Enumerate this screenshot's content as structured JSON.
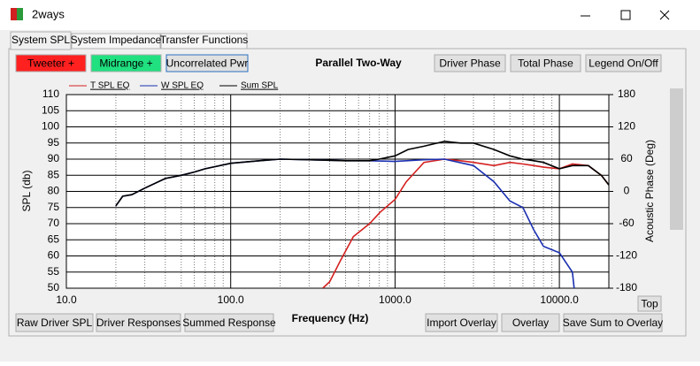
{
  "window": {
    "title": "2ways"
  },
  "tabs": [
    "System SPL",
    "System Impedance",
    "Transfer Functions"
  ],
  "top_buttons": [
    "Tweeter +",
    "Midrange +",
    "Uncorrelated Pwr",
    "Driver Phase",
    "Total Phase",
    "Legend On/Off"
  ],
  "bottom_buttons": [
    "Raw Driver SPL",
    "Driver Responses",
    "Summed Response",
    "Import Overlay",
    "Overlay",
    "Save Sum to Overlay",
    "Top"
  ],
  "chart_data": {
    "type": "line",
    "title": "Parallel Two-Way",
    "x_label": "Frequency (Hz)",
    "y_label": "SPL (db)",
    "y2_label": "Acoustic Phase (Deg)",
    "x_scale": "log",
    "grid": true,
    "xlim": [
      10,
      20000
    ],
    "xticks": [
      {
        "value": 10,
        "label": "10.0"
      },
      {
        "value": 100,
        "label": "100.0"
      },
      {
        "value": 1000,
        "label": "1000.0"
      },
      {
        "value": 10000,
        "label": "10000.0"
      }
    ],
    "ylim": [
      50,
      110
    ],
    "yticks": [
      50,
      55,
      60,
      65,
      70,
      75,
      80,
      85,
      90,
      95,
      100,
      105,
      110
    ],
    "y2lim": [
      -180,
      180
    ],
    "y2ticks": [
      -180,
      -120,
      -60,
      0,
      60,
      120,
      180
    ],
    "series": [
      {
        "name": "T SPL EQ",
        "color": "#d42020",
        "x": [
          363,
          400,
          465,
          558,
          700,
          810,
          1000,
          1170,
          1500,
          2000,
          2500,
          3000,
          4000,
          5000,
          6000,
          7000,
          8000,
          10000,
          12000,
          15000,
          18000,
          20000
        ],
        "values": [
          50,
          52,
          58.5,
          66,
          70,
          73.5,
          77.5,
          83,
          89,
          90,
          89.5,
          89,
          88,
          89,
          88.5,
          88,
          87.5,
          87,
          88.5,
          88,
          85,
          82
        ]
      },
      {
        "name": "W SPL EQ",
        "color": "#1a2fb0",
        "x": [
          20,
          22,
          25,
          30,
          40,
          50,
          60,
          70,
          100,
          150,
          200,
          300,
          500,
          700,
          1000,
          1500,
          2000,
          3000,
          4000,
          5000,
          6000,
          7000,
          8000,
          10000,
          12000,
          12300
        ],
        "values": [
          75.5,
          78.5,
          79,
          81,
          84,
          85,
          86,
          87,
          88.7,
          89.5,
          90,
          89.8,
          89.5,
          89.5,
          89.3,
          89.8,
          90,
          88,
          83,
          77,
          75,
          68,
          63,
          61,
          55,
          50
        ]
      },
      {
        "name": "Sum SPL",
        "color": "#000000",
        "x": [
          20,
          22,
          25,
          30,
          40,
          50,
          60,
          70,
          100,
          150,
          200,
          300,
          500,
          700,
          800,
          1000,
          1200,
          1500,
          2000,
          2500,
          3000,
          4000,
          5000,
          6000,
          7000,
          8000,
          10000,
          12000,
          15000,
          18000,
          20000
        ],
        "values": [
          75.5,
          78.5,
          79,
          81,
          84,
          85,
          86,
          87,
          88.7,
          89.5,
          90,
          89.8,
          89.5,
          89.5,
          90,
          91,
          93,
          94,
          95.5,
          95,
          95,
          93,
          91,
          90,
          89.5,
          89,
          87,
          88,
          88,
          85,
          82
        ]
      }
    ]
  }
}
